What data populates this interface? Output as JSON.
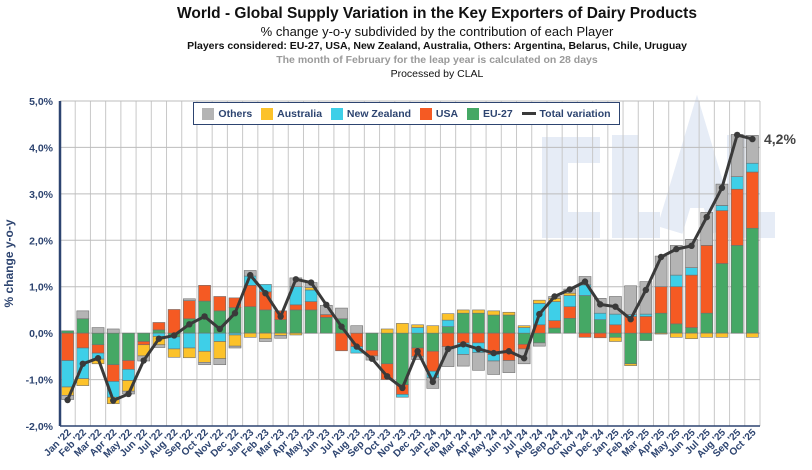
{
  "header": {
    "title": "World - Global Supply Variation in the Key Exporters of Dairy Products",
    "subtitle": "% change y-o-y subdivided by the contribution of each Player",
    "players": "Players considered: EU-27, USA, New Zealand, Australia, Others: Argentina, Belarus, Chile, Uruguay",
    "note": "The month of February for the leap year is calculated on 28 days",
    "processed": "Processed by CLAL"
  },
  "watermark": "CLAL",
  "chart_data": {
    "type": "bar",
    "stacked": true,
    "title": "World - Global Supply Variation in the Key Exporters of Dairy Products",
    "ylabel": "% change y-o-y",
    "xlabel": "",
    "ylim": [
      -2,
      5
    ],
    "y_ticks": [
      "5,0%",
      "4,0%",
      "3,0%",
      "2,0%",
      "1,0%",
      "0,0%",
      "-1,0%",
      "-2,0%"
    ],
    "grid": true,
    "legend_placement": "top-center",
    "last_value_label": "4,2%",
    "categories": [
      "Jan '22",
      "Feb '22",
      "Mar '22",
      "Apr '22",
      "May '22",
      "Jun '22",
      "Jul '22",
      "Aug '22",
      "Sep '22",
      "Oct '22",
      "Nov '22",
      "Dec '22",
      "Jan '23",
      "Feb '23",
      "Mar '23",
      "Apr '23",
      "May '23",
      "Jun '23",
      "Jul '23",
      "Aug '23",
      "Sep '23",
      "Oct '23",
      "Nov '23",
      "Dec '23",
      "Jan '24",
      "Feb '24",
      "Mar '24",
      "Apr '24",
      "May '24",
      "Jun '24",
      "Jul '24",
      "Aug '24",
      "Sep '24",
      "Oct '24",
      "Nov '24",
      "Dec '24",
      "Jan '25",
      "Feb '25",
      "Mar '25",
      "Apr '25",
      "May '25",
      "Jun '25",
      "Jul '25",
      "Aug '25",
      "Sep '25",
      "Oct '25"
    ],
    "series": [
      {
        "name": "EU-27",
        "color": "#45a865",
        "values": [
          0.05,
          0.31,
          -0.25,
          -0.68,
          -0.59,
          -0.18,
          0.07,
          -0.08,
          0.31,
          0.69,
          0.48,
          0.55,
          0.57,
          0.5,
          0.29,
          0.5,
          0.5,
          0.34,
          0.31,
          0,
          -0.37,
          -0.66,
          -1.11,
          -0.32,
          -0.39,
          0.14,
          0.43,
          0.43,
          0.39,
          0.39,
          -0.24,
          -0.21,
          0.11,
          0.32,
          0.81,
          0.29,
          -0.09,
          -0.66,
          -0.16,
          0.43,
          0.2,
          0.12,
          0.43,
          1.5,
          1.89,
          2.26
        ]
      },
      {
        "name": "USA",
        "color": "#f55a23",
        "values": [
          -0.59,
          -0.32,
          -0.18,
          -0.36,
          -0.19,
          -0.07,
          0.16,
          0.51,
          0.39,
          0.34,
          0.31,
          0.21,
          0.46,
          0.39,
          0.19,
          0.11,
          0.18,
          0.06,
          -0.38,
          -0.29,
          -0.12,
          -0.34,
          -0.21,
          -0.18,
          -0.43,
          -0.29,
          -0.21,
          -0.21,
          -0.46,
          -0.59,
          -0.1,
          0.18,
          0.16,
          0.25,
          -0.09,
          -0.1,
          0.18,
          0.36,
          0.36,
          0.57,
          0.8,
          1.13,
          1.46,
          1.14,
          1.21,
          1.21
        ]
      },
      {
        "name": "New Zealand",
        "color": "#3ecfe8",
        "values": [
          -0.57,
          -0.66,
          -0.13,
          -0.34,
          -0.24,
          0,
          -0.07,
          -0.26,
          -0.32,
          -0.39,
          -0.18,
          -0.04,
          0.2,
          0.16,
          0,
          0.39,
          0.25,
          0,
          0,
          -0.14,
          0,
          0,
          -0.06,
          0.12,
          -0.14,
          0.14,
          -0.25,
          -0.21,
          -0.14,
          0,
          0.12,
          0.46,
          0.41,
          0.24,
          0.23,
          0.14,
          0.23,
          0.04,
          0.05,
          0,
          0.25,
          0.16,
          0,
          0.11,
          0.27,
          0.19
        ]
      },
      {
        "name": "Australia",
        "color": "#fcc22a",
        "values": [
          -0.18,
          -0.15,
          -0.1,
          -0.14,
          -0.23,
          -0.24,
          -0.18,
          -0.18,
          -0.21,
          -0.24,
          -0.37,
          -0.24,
          -0.09,
          -0.12,
          -0.05,
          -0.04,
          0.05,
          0,
          0,
          0,
          0,
          0.09,
          0.21,
          0.06,
          0.16,
          0.14,
          0.07,
          0.07,
          0.09,
          0.06,
          0.04,
          0.07,
          0.07,
          0.05,
          0,
          0,
          -0.09,
          -0.04,
          0,
          -0.02,
          -0.09,
          -0.12,
          -0.09,
          -0.09,
          0,
          -0.09
        ]
      },
      {
        "name": "Others",
        "color": "#b4b4b4",
        "values": [
          -0.09,
          0.17,
          0.12,
          0.09,
          -0.06,
          -0.11,
          -0.06,
          0,
          0.04,
          -0.05,
          -0.13,
          -0.04,
          0.12,
          -0.06,
          -0.06,
          0.19,
          0.11,
          0.2,
          0.23,
          0.16,
          -0.09,
          0,
          0,
          -0.07,
          -0.23,
          -0.43,
          -0.25,
          -0.38,
          -0.29,
          -0.26,
          -0.32,
          -0.07,
          0.04,
          0.09,
          0.18,
          0.32,
          0.38,
          0.62,
          0.7,
          0.66,
          0.64,
          0.61,
          0.71,
          0.46,
          0.91,
          0.6
        ]
      }
    ],
    "total_variation": {
      "name": "Total variation",
      "color": "#3a3a3a",
      "values": [
        -1.44,
        -0.66,
        -0.54,
        -1.45,
        -1.31,
        -0.59,
        -0.12,
        -0.05,
        0.19,
        0.36,
        0.09,
        0.43,
        1.25,
        0.86,
        0.36,
        1.16,
        1.09,
        0.61,
        0.14,
        -0.29,
        -0.55,
        -0.93,
        -1.18,
        -0.39,
        -1.05,
        -0.34,
        -0.24,
        -0.34,
        -0.43,
        -0.39,
        -0.54,
        0.41,
        0.79,
        0.94,
        1.11,
        0.62,
        0.57,
        0.3,
        0.93,
        1.64,
        1.81,
        1.88,
        2.5,
        3.13,
        4.27,
        4.18
      ]
    },
    "legend": [
      "Others",
      "Australia",
      "New Zealand",
      "USA",
      "EU-27",
      "Total variation"
    ]
  }
}
